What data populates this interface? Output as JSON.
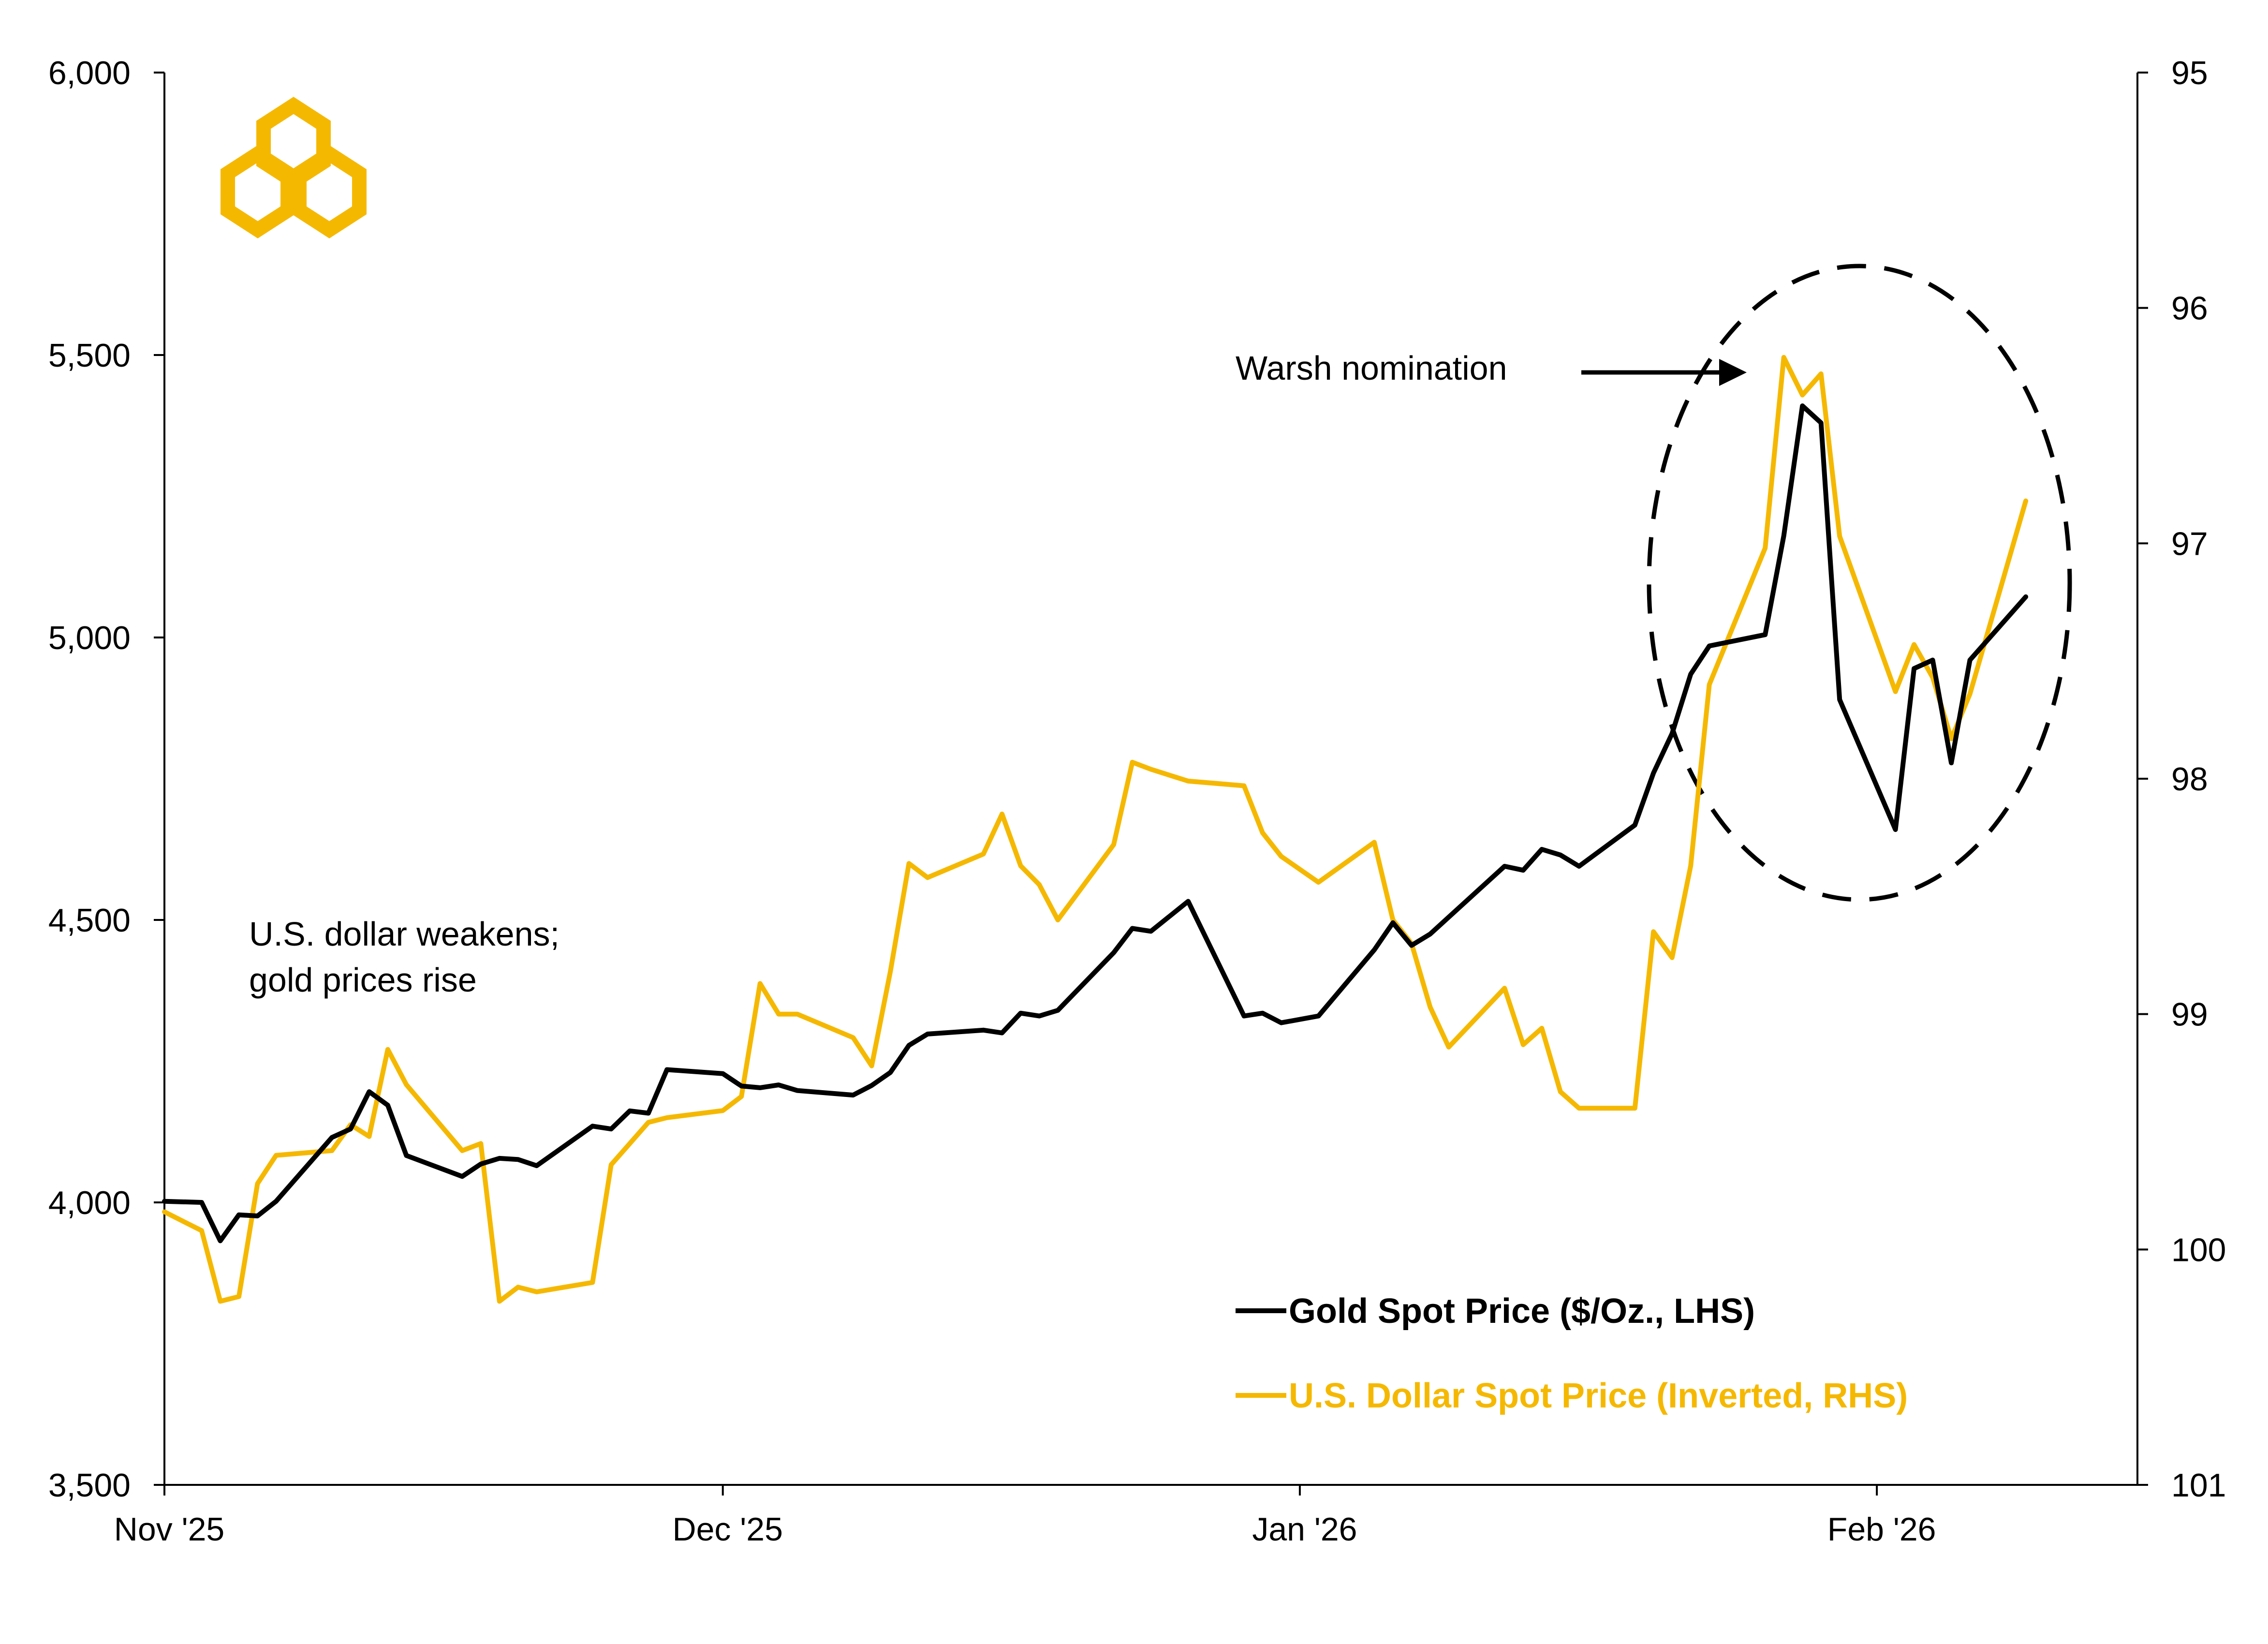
{
  "chart_data": {
    "type": "line",
    "title": "",
    "xlabel": "",
    "ylabel": "",
    "y2label": "",
    "x_tick_labels": [
      "Nov '25",
      "Dec '25",
      "Jan '26",
      "Feb '26"
    ],
    "x_ticks": [
      "2025-11-01",
      "2025-12-01",
      "2026-01-01",
      "2026-02-01"
    ],
    "xlim": [
      "2025-11-01",
      "2026-02-15"
    ],
    "ylim_left": [
      3500,
      6000
    ],
    "ylim_right_inverted": [
      95,
      101
    ],
    "y_ticks_left": [
      3500,
      4000,
      4500,
      5000,
      5500,
      6000
    ],
    "y_tick_labels_left": [
      "3,500",
      "4,000",
      "4,500",
      "5,000",
      "5,500",
      "6,000"
    ],
    "y_ticks_right": [
      95,
      96,
      97,
      98,
      99,
      100,
      101
    ],
    "y_tick_labels_right": [
      "95",
      "96",
      "97",
      "98",
      "99",
      "100",
      "101"
    ],
    "grid": false,
    "legend_position": "bottom-right",
    "series": [
      {
        "name": "Gold Spot Price ($/Oz., LHS)",
        "axis": "left",
        "color": "#000000",
        "points": [
          [
            "2025-11-01",
            4002
          ],
          [
            "2025-11-03",
            4000
          ],
          [
            "2025-11-04",
            3932
          ],
          [
            "2025-11-05",
            3978
          ],
          [
            "2025-11-06",
            3976
          ],
          [
            "2025-11-07",
            4002
          ],
          [
            "2025-11-10",
            4115
          ],
          [
            "2025-11-11",
            4130
          ],
          [
            "2025-11-12",
            4196
          ],
          [
            "2025-11-13",
            4172
          ],
          [
            "2025-11-14",
            4083
          ],
          [
            "2025-11-17",
            4046
          ],
          [
            "2025-11-18",
            4068
          ],
          [
            "2025-11-19",
            4078
          ],
          [
            "2025-11-20",
            4076
          ],
          [
            "2025-11-21",
            4065
          ],
          [
            "2025-11-24",
            4135
          ],
          [
            "2025-11-25",
            4130
          ],
          [
            "2025-11-26",
            4162
          ],
          [
            "2025-11-27",
            4158
          ],
          [
            "2025-11-28",
            4235
          ],
          [
            "2025-12-01",
            4228
          ],
          [
            "2025-12-02",
            4206
          ],
          [
            "2025-12-03",
            4203
          ],
          [
            "2025-12-04",
            4208
          ],
          [
            "2025-12-05",
            4198
          ],
          [
            "2025-12-08",
            4190
          ],
          [
            "2025-12-09",
            4207
          ],
          [
            "2025-12-10",
            4230
          ],
          [
            "2025-12-11",
            4278
          ],
          [
            "2025-12-12",
            4298
          ],
          [
            "2025-12-15",
            4305
          ],
          [
            "2025-12-16",
            4300
          ],
          [
            "2025-12-17",
            4335
          ],
          [
            "2025-12-18",
            4330
          ],
          [
            "2025-12-19",
            4340
          ],
          [
            "2025-12-22",
            4442
          ],
          [
            "2025-12-23",
            4485
          ],
          [
            "2025-12-24",
            4480
          ],
          [
            "2025-12-26",
            4533
          ],
          [
            "2025-12-29",
            4330
          ],
          [
            "2025-12-30",
            4335
          ],
          [
            "2025-12-31",
            4318
          ],
          [
            "2026-01-02",
            4330
          ],
          [
            "2026-01-05",
            4447
          ],
          [
            "2026-01-06",
            4495
          ],
          [
            "2026-01-07",
            4455
          ],
          [
            "2026-01-08",
            4475
          ],
          [
            "2026-01-09",
            4505
          ],
          [
            "2026-01-12",
            4595
          ],
          [
            "2026-01-13",
            4588
          ],
          [
            "2026-01-14",
            4625
          ],
          [
            "2026-01-15",
            4615
          ],
          [
            "2026-01-16",
            4595
          ],
          [
            "2026-01-19",
            4668
          ],
          [
            "2026-01-20",
            4760
          ],
          [
            "2026-01-21",
            4830
          ],
          [
            "2026-01-22",
            4935
          ],
          [
            "2026-01-23",
            4985
          ],
          [
            "2026-01-26",
            5005
          ],
          [
            "2026-01-27",
            5180
          ],
          [
            "2026-01-28",
            5410
          ],
          [
            "2026-01-29",
            5380
          ],
          [
            "2026-01-30",
            4890
          ],
          [
            "2026-02-02",
            4660
          ],
          [
            "2026-02-03",
            4945
          ],
          [
            "2026-02-04",
            4960
          ],
          [
            "2026-02-05",
            4778
          ],
          [
            "2026-02-06",
            4960
          ],
          [
            "2026-02-09",
            5072
          ]
        ]
      },
      {
        "name": "U.S. Dollar Spot Price (Inverted, RHS)",
        "axis": "right",
        "color": "#F5B800",
        "points": [
          [
            "2025-11-01",
            99.84
          ],
          [
            "2025-11-03",
            99.92
          ],
          [
            "2025-11-04",
            100.22
          ],
          [
            "2025-11-05",
            100.2
          ],
          [
            "2025-11-06",
            99.72
          ],
          [
            "2025-11-07",
            99.6
          ],
          [
            "2025-11-10",
            99.58
          ],
          [
            "2025-11-11",
            99.47
          ],
          [
            "2025-11-12",
            99.52
          ],
          [
            "2025-11-13",
            99.15
          ],
          [
            "2025-11-14",
            99.3
          ],
          [
            "2025-11-17",
            99.58
          ],
          [
            "2025-11-18",
            99.55
          ],
          [
            "2025-11-19",
            100.22
          ],
          [
            "2025-11-20",
            100.16
          ],
          [
            "2025-11-21",
            100.18
          ],
          [
            "2025-11-24",
            100.14
          ],
          [
            "2025-11-25",
            99.64
          ],
          [
            "2025-11-26",
            99.55
          ],
          [
            "2025-11-27",
            99.46
          ],
          [
            "2025-11-28",
            99.44
          ],
          [
            "2025-12-01",
            99.41
          ],
          [
            "2025-12-02",
            99.35
          ],
          [
            "2025-12-03",
            98.87
          ],
          [
            "2025-12-04",
            99.0
          ],
          [
            "2025-12-05",
            99.0
          ],
          [
            "2025-12-08",
            99.1
          ],
          [
            "2025-12-09",
            99.22
          ],
          [
            "2025-12-10",
            98.82
          ],
          [
            "2025-12-11",
            98.36
          ],
          [
            "2025-12-12",
            98.42
          ],
          [
            "2025-12-15",
            98.32
          ],
          [
            "2025-12-16",
            98.15
          ],
          [
            "2025-12-17",
            98.37
          ],
          [
            "2025-12-18",
            98.45
          ],
          [
            "2025-12-19",
            98.6
          ],
          [
            "2025-12-22",
            98.28
          ],
          [
            "2025-12-23",
            97.93
          ],
          [
            "2025-12-24",
            97.96
          ],
          [
            "2025-12-26",
            98.01
          ],
          [
            "2025-12-29",
            98.03
          ],
          [
            "2025-12-30",
            98.23
          ],
          [
            "2025-12-31",
            98.33
          ],
          [
            "2026-01-02",
            98.44
          ],
          [
            "2026-01-05",
            98.27
          ],
          [
            "2026-01-06",
            98.6
          ],
          [
            "2026-01-07",
            98.7
          ],
          [
            "2026-01-08",
            98.97
          ],
          [
            "2026-01-09",
            99.14
          ],
          [
            "2026-01-12",
            98.89
          ],
          [
            "2026-01-13",
            99.13
          ],
          [
            "2026-01-14",
            99.06
          ],
          [
            "2026-01-15",
            99.33
          ],
          [
            "2026-01-16",
            99.4
          ],
          [
            "2026-01-19",
            99.4
          ],
          [
            "2026-01-20",
            98.65
          ],
          [
            "2026-01-21",
            98.76
          ],
          [
            "2026-01-22",
            98.37
          ],
          [
            "2026-01-23",
            97.6
          ],
          [
            "2026-01-26",
            97.02
          ],
          [
            "2026-01-27",
            96.21
          ],
          [
            "2026-01-28",
            96.37
          ],
          [
            "2026-01-29",
            96.28
          ],
          [
            "2026-01-30",
            96.97
          ],
          [
            "2026-02-02",
            97.63
          ],
          [
            "2026-02-03",
            97.43
          ],
          [
            "2026-02-04",
            97.57
          ],
          [
            "2026-02-05",
            97.83
          ],
          [
            "2026-02-06",
            97.64
          ],
          [
            "2026-02-09",
            96.82
          ]
        ]
      }
    ],
    "annotations": [
      {
        "text": "U.S. dollar weakens;"
      },
      {
        "text": "gold prices rise"
      },
      {
        "text": "Warsh nomination"
      }
    ]
  }
}
